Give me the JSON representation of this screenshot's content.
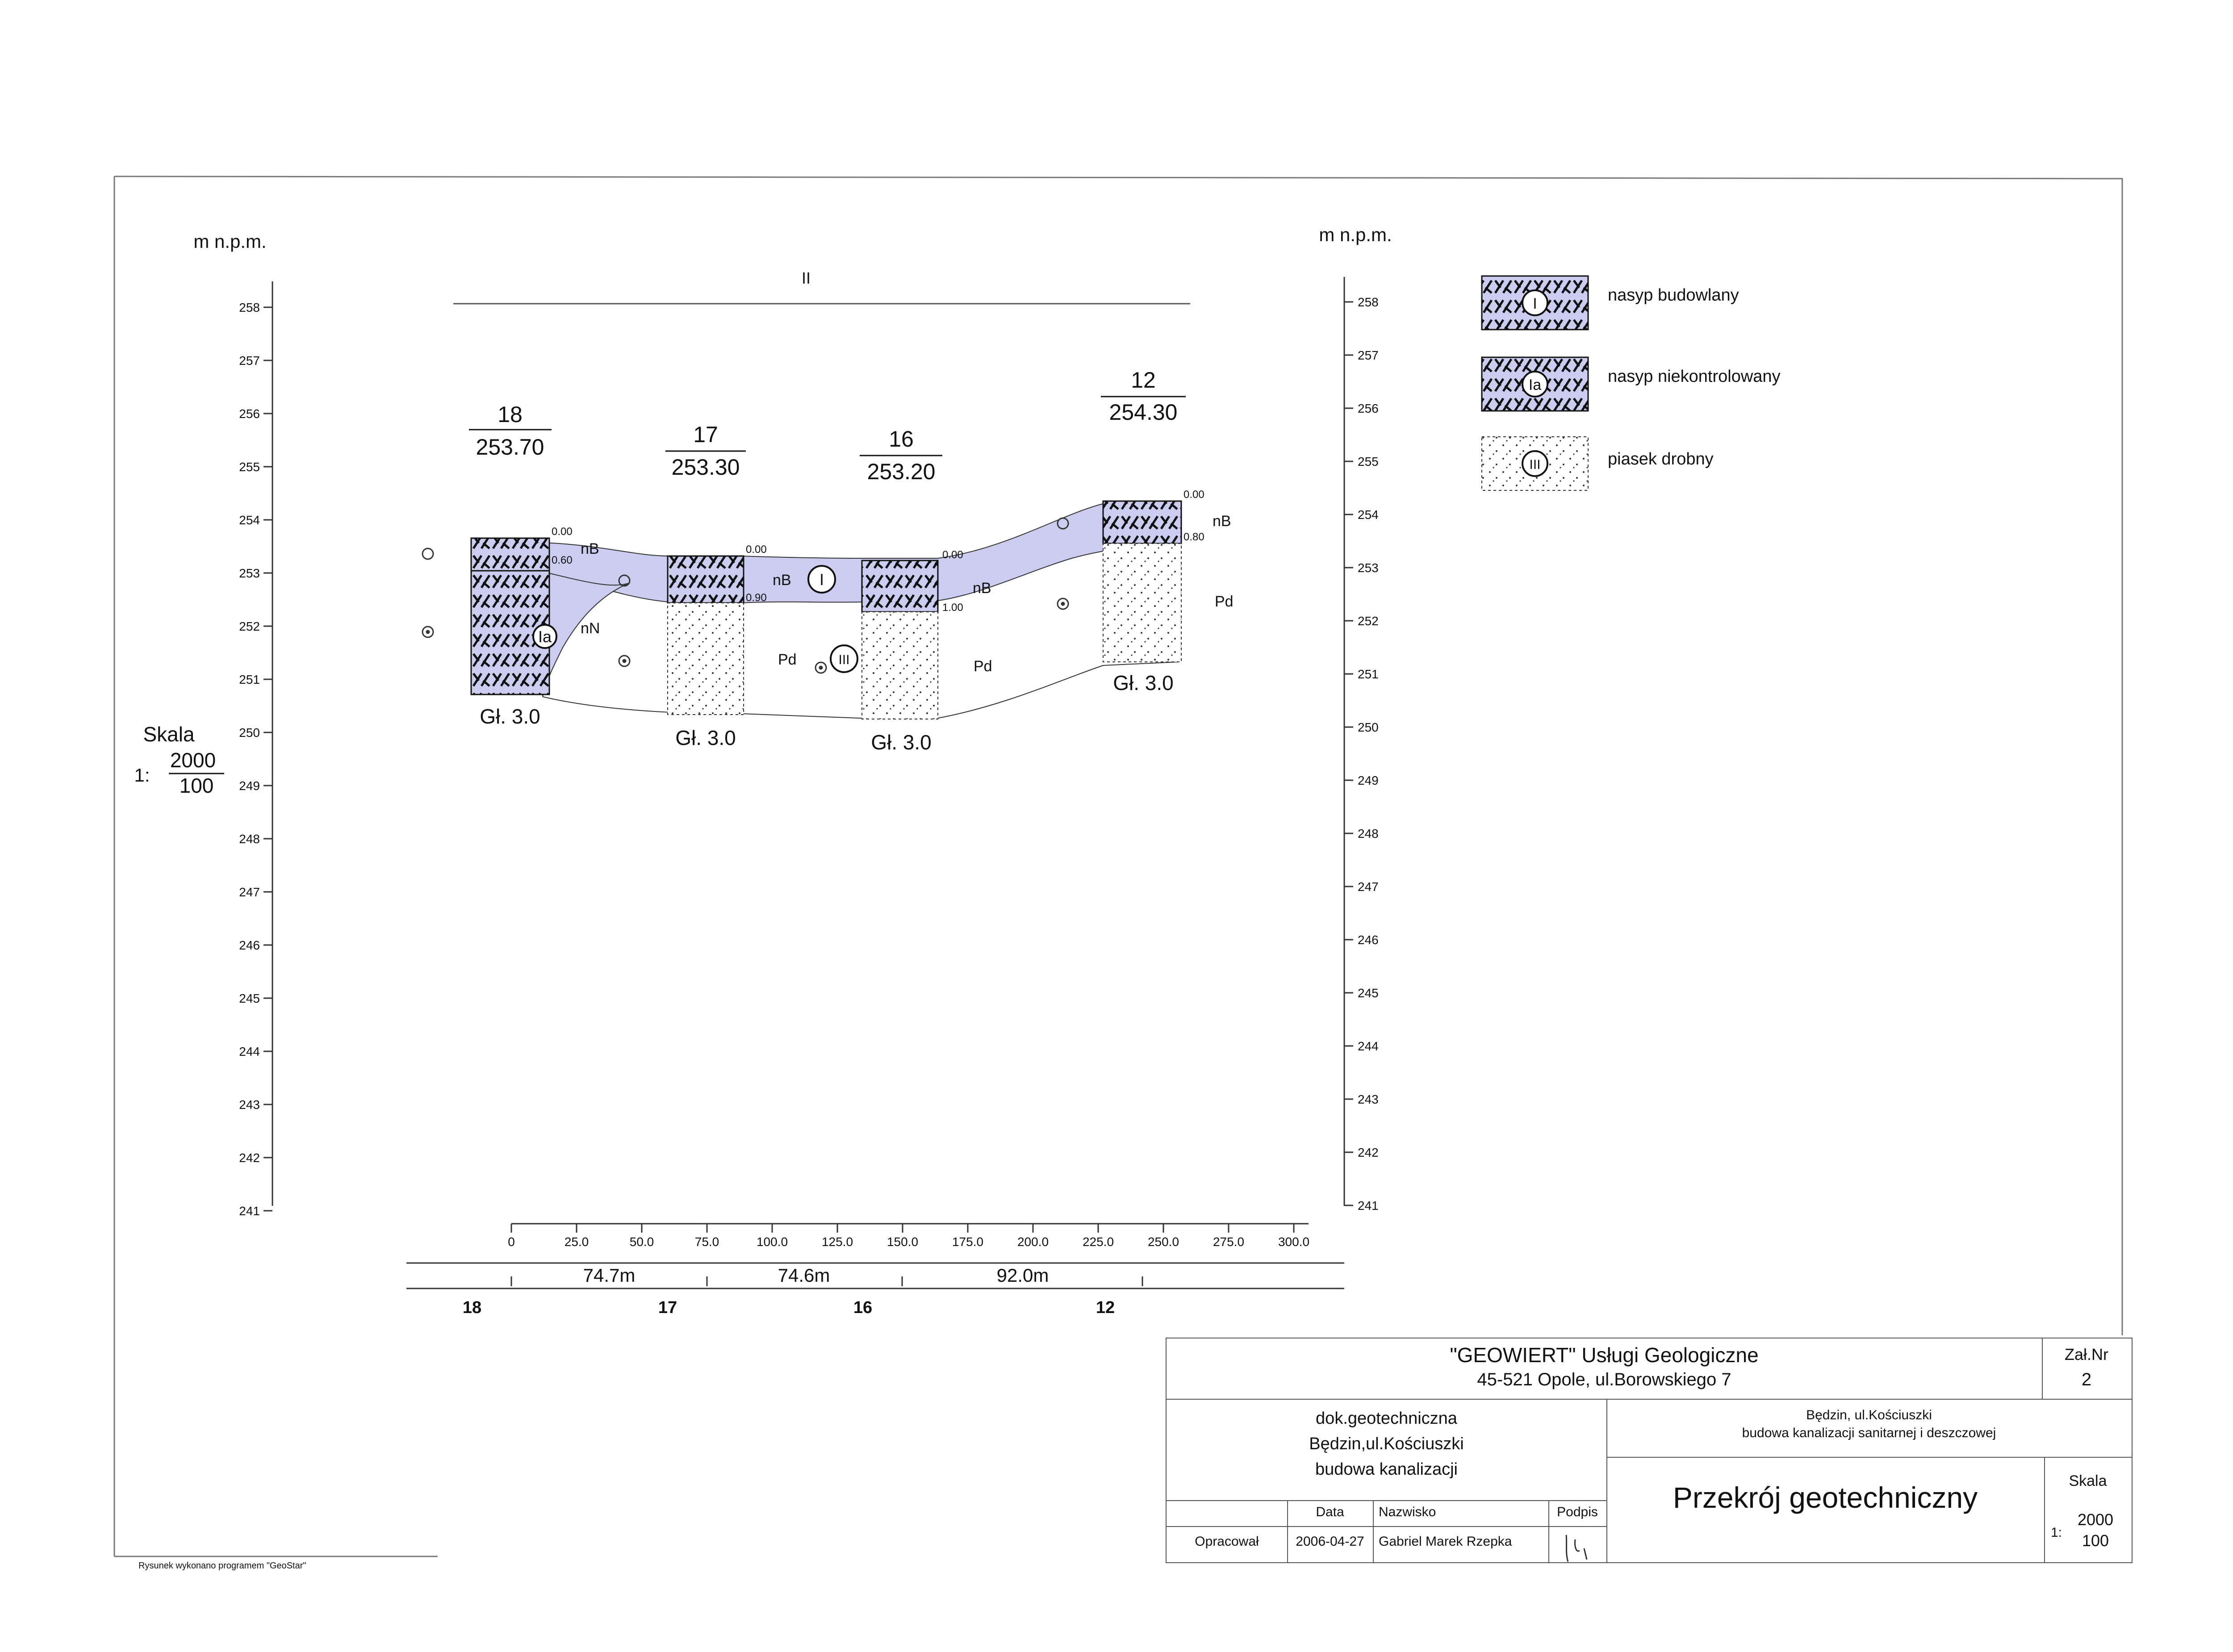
{
  "axis": {
    "unit_left": "m n.p.m.",
    "unit_right": "m n.p.m.",
    "elev_min": 241,
    "elev_max": 258,
    "x_ticks": [
      "0",
      "25.0",
      "50.0",
      "75.0",
      "100.0",
      "125.0",
      "150.0",
      "175.0",
      "200.0",
      "225.0",
      "250.0",
      "275.0",
      "300.0"
    ],
    "section_label": "II"
  },
  "scale_left": {
    "label": "Skala",
    "prefix": "1:",
    "horizontal": "2000",
    "vertical": "100"
  },
  "boreholes": [
    {
      "number": "18",
      "elevation": "253.70",
      "dist": 0,
      "depth_label": "Gł. 3.0",
      "layers": [
        {
          "from": "0.00",
          "to": "0.60",
          "code": "I"
        },
        {
          "from": "0.60",
          "to": "3.0",
          "code": "Ia"
        }
      ]
    },
    {
      "number": "17",
      "elevation": "253.30",
      "dist": 74.7,
      "depth_label": "Gł. 3.0",
      "layers": [
        {
          "from": "0.00",
          "to": "0.90",
          "code": "I"
        },
        {
          "from": "0.90",
          "to": "3.0",
          "code": "III"
        }
      ]
    },
    {
      "number": "16",
      "elevation": "253.20",
      "dist": 149.3,
      "depth_label": "Gł. 3.0",
      "layers": [
        {
          "from": "0.00",
          "to": "1.00",
          "code": "I"
        },
        {
          "from": "1.00",
          "to": "3.0",
          "code": "III"
        }
      ]
    },
    {
      "number": "12",
      "elevation": "254.30",
      "dist": 241.3,
      "depth_label": "Gł. 3.0",
      "layers": [
        {
          "from": "0.00",
          "to": "0.80",
          "code": "I"
        },
        {
          "from": "0.80",
          "to": "3.0",
          "code": "III"
        }
      ]
    }
  ],
  "layer_labels": {
    "nB": "nB",
    "nN": "nN",
    "Pd": "Pd",
    "I": "I",
    "Ia": "Ia",
    "III": "III"
  },
  "distances": [
    "74.7m",
    "74.6m",
    "92.0m"
  ],
  "legend": [
    {
      "code": "I",
      "label": "nasyp budowlany"
    },
    {
      "code": "Ia",
      "label": "nasyp niekontrolowany"
    },
    {
      "code": "III",
      "label": "piasek drobny"
    }
  ],
  "colors": {
    "fill_lavender": "#ccccf0",
    "hatch": "#111111",
    "frame": "#777777"
  },
  "title_block": {
    "company": "\"GEOWIERT\" Usługi Geologiczne",
    "address": "45-521 Opole, ul.Borowskiego 7",
    "zal_label": "Zał.Nr",
    "zal_value": "2",
    "doc_line1": "dok.geotechniczna",
    "doc_line2": "Będzin,ul.Kościuszki",
    "doc_line3": "budowa kanalizacji",
    "location_line1": "Będzin, ul.Kościuszki",
    "location_line2": "budowa kanalizacji sanitarnej i deszczowej",
    "drawing_title": "Przekrój geotechniczny",
    "scale_label": "Skala",
    "scale_prefix": "1:",
    "scale_h": "2000",
    "scale_v": "100",
    "col_data": "Data",
    "col_nazwisko": "Nazwisko",
    "col_podpis": "Podpis",
    "role": "Opracował",
    "date": "2006-04-27",
    "author": "Gabriel Marek Rzepka"
  },
  "footer_note": "Rysunek wykonano programem \"GeoStar\""
}
